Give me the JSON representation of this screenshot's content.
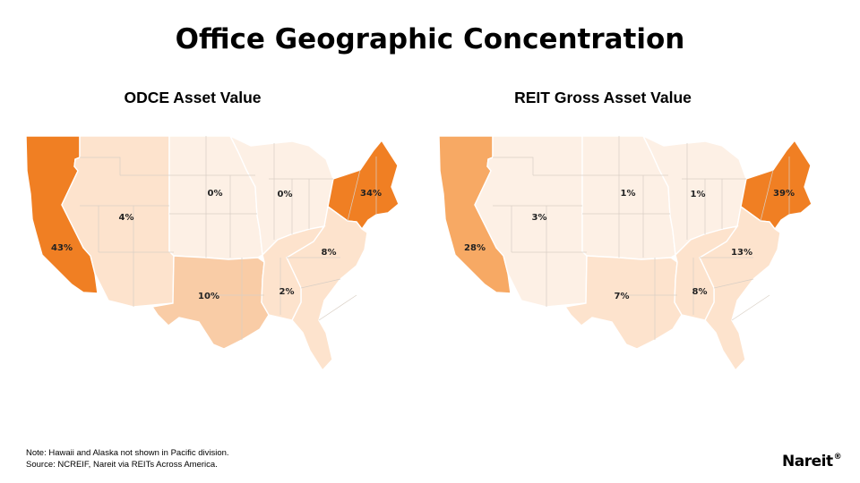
{
  "page": {
    "title": "Office Geographic Concentration",
    "note": "Note: Hawaii and Alaska not shown in Pacific division.",
    "source": "Source: NCREIF, Nareit via REITs Across America.",
    "logo": "Nareit",
    "logo_mark": "®"
  },
  "colors": {
    "shade_0": "#fdf0e5",
    "shade_1": "#fde3cd",
    "shade_2": "#f9cca6",
    "shade_3": "#f7a964",
    "shade_4": "#f07f23",
    "border": "#ffffff"
  },
  "maps": [
    {
      "title": "ODCE Asset Value",
      "divisions": [
        {
          "name": "Pacific",
          "value": "43%",
          "shade": "shade_4"
        },
        {
          "name": "Mountain",
          "value": "4%",
          "shade": "shade_1"
        },
        {
          "name": "West North Central",
          "value": "0%",
          "shade": "shade_0"
        },
        {
          "name": "East North Central",
          "value": "0%",
          "shade": "shade_0"
        },
        {
          "name": "Northeast",
          "value": "34%",
          "shade": "shade_4"
        },
        {
          "name": "South Atlantic",
          "value": "8%",
          "shade": "shade_1"
        },
        {
          "name": "West South Central",
          "value": "10%",
          "shade": "shade_2"
        },
        {
          "name": "East South Central",
          "value": "2%",
          "shade": "shade_1"
        }
      ]
    },
    {
      "title": "REIT Gross Asset Value",
      "divisions": [
        {
          "name": "Pacific",
          "value": "28%",
          "shade": "shade_3"
        },
        {
          "name": "Mountain",
          "value": "3%",
          "shade": "shade_0"
        },
        {
          "name": "West North Central",
          "value": "1%",
          "shade": "shade_0"
        },
        {
          "name": "East North Central",
          "value": "1%",
          "shade": "shade_0"
        },
        {
          "name": "Northeast",
          "value": "39%",
          "shade": "shade_4"
        },
        {
          "name": "South Atlantic",
          "value": "13%",
          "shade": "shade_1"
        },
        {
          "name": "West South Central",
          "value": "7%",
          "shade": "shade_1"
        },
        {
          "name": "East South Central",
          "value": "8%",
          "shade": "shade_1"
        }
      ]
    }
  ]
}
